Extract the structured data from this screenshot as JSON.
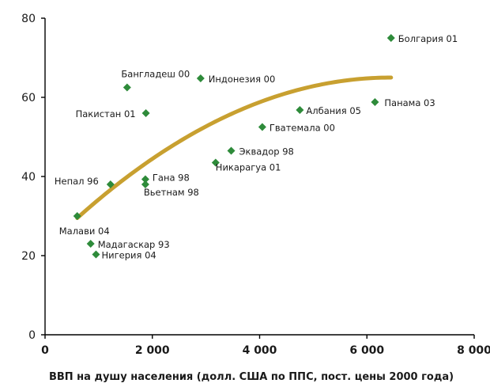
{
  "chart_data": {
    "type": "scatter",
    "xlabel": "ВВП на душу населения (долл. США по ППС, пост. цены 2000 года)",
    "xlim": [
      0,
      8000
    ],
    "ylim": [
      0,
      80
    ],
    "x_ticks": [
      0,
      2000,
      4000,
      6000,
      8000
    ],
    "x_tick_labels": [
      "0",
      "2 000",
      "4 000",
      "6 000",
      "8 000"
    ],
    "y_ticks": [
      0,
      20,
      40,
      60,
      80
    ],
    "y_tick_labels": [
      "0",
      "20",
      "40",
      "60",
      "80"
    ],
    "grid": false,
    "colors": {
      "points": "#2e8b3a",
      "trend": "#c8a030",
      "axis": "#000000"
    },
    "points": [
      {
        "label": "Болгария 01",
        "x": 6450,
        "y": 75
      },
      {
        "label": "Бангладеш 00",
        "x": 1530,
        "y": 62.5
      },
      {
        "label": "Индонезия 00",
        "x": 2900,
        "y": 64.8
      },
      {
        "label": "Пакистан 01",
        "x": 1880,
        "y": 56
      },
      {
        "label": "Албания 05",
        "x": 4750,
        "y": 56.8
      },
      {
        "label": "Панама 03",
        "x": 6150,
        "y": 58.8
      },
      {
        "label": "Гватемала 00",
        "x": 4050,
        "y": 52.5
      },
      {
        "label": "Эквадор 98",
        "x": 3470,
        "y": 46.5
      },
      {
        "label": "Никарагуа 01",
        "x": 3180,
        "y": 43.5
      },
      {
        "label": "Гана 98",
        "x": 1870,
        "y": 39.3
      },
      {
        "label": "Вьетнам 98",
        "x": 1870,
        "y": 38
      },
      {
        "label": "Непал 96",
        "x": 1220,
        "y": 38
      },
      {
        "label": "Малави 04",
        "x": 600,
        "y": 30
      },
      {
        "label": "Мадагаскар 93",
        "x": 850,
        "y": 23
      },
      {
        "label": "Нигерия 04",
        "x": 950,
        "y": 20.3
      }
    ],
    "trend": {
      "type": "quadratic",
      "x_range": [
        600,
        6450
      ],
      "y_start": 29.5,
      "y_end": 65
    }
  }
}
